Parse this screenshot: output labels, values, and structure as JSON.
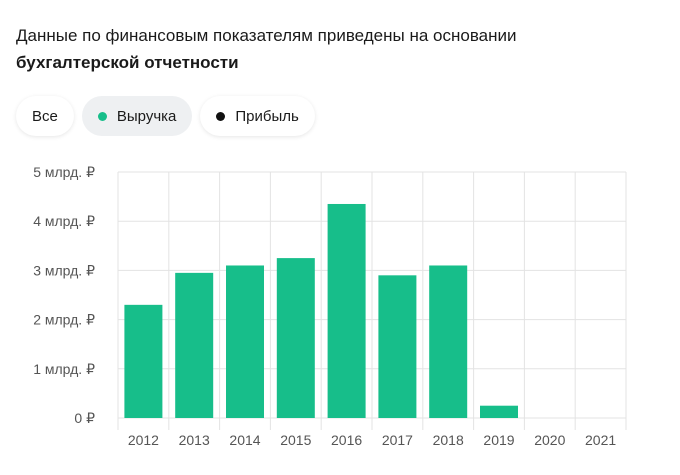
{
  "intro": {
    "text_regular": "Данные по финансовым показателям приведены на основании",
    "text_bold": "бухгалтерской отчетности"
  },
  "filters": [
    {
      "label": "Все",
      "active": false,
      "dot_color": null
    },
    {
      "label": "Выручка",
      "active": true,
      "dot_color": "#17be8a"
    },
    {
      "label": "Прибыль",
      "active": false,
      "dot_color": "#111111"
    }
  ],
  "colors": {
    "bar": "#17be8a",
    "grid": "#e3e3e3",
    "axis_text": "#555555"
  },
  "chart_data": {
    "type": "bar",
    "categories": [
      "2012",
      "2013",
      "2014",
      "2015",
      "2016",
      "2017",
      "2018",
      "2019",
      "2020",
      "2021"
    ],
    "values": [
      2.3,
      2.95,
      3.1,
      3.25,
      4.35,
      2.9,
      3.1,
      0.25,
      0,
      0
    ],
    "ylim": [
      0,
      5
    ],
    "yticks": [
      {
        "value": 0,
        "label": "0 ₽"
      },
      {
        "value": 1,
        "label": "1 млрд. ₽"
      },
      {
        "value": 2,
        "label": "2 млрд. ₽"
      },
      {
        "value": 3,
        "label": "3 млрд. ₽"
      },
      {
        "value": 4,
        "label": "4 млрд. ₽"
      },
      {
        "value": 5,
        "label": "5 млрд. ₽"
      }
    ],
    "grid": true,
    "series": [
      {
        "name": "Выручка",
        "values": [
          2.3,
          2.95,
          3.1,
          3.25,
          4.35,
          2.9,
          3.1,
          0.25,
          0,
          0
        ]
      }
    ]
  }
}
